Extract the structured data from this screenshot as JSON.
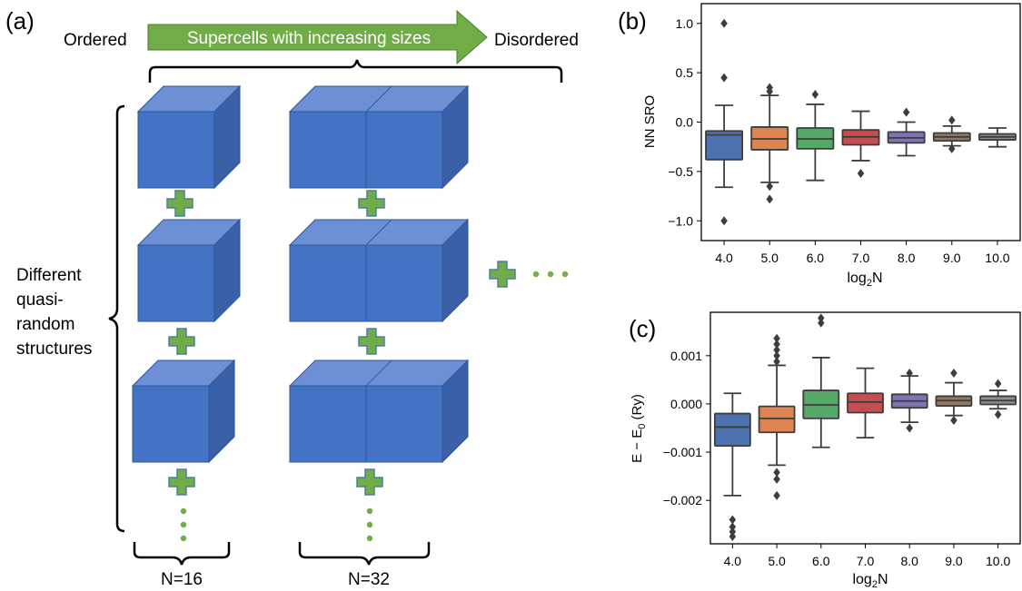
{
  "panel_a": {
    "label": "(a)",
    "ordered": "Ordered",
    "arrow_text": "Supercells with increasing sizes",
    "disordered": "Disordered",
    "side_text": [
      "Different",
      "quasi-",
      "random",
      "structures"
    ],
    "n_labels": [
      "N=16",
      "N=32"
    ],
    "colors": {
      "cube_front": "#4472C4",
      "cube_top": "#6D8FD6",
      "cube_side": "#3A61A8",
      "plus": "#70AD47",
      "arrow": "#70AD47"
    }
  },
  "chart_data": [
    {
      "panel": "(b)",
      "type": "box",
      "categories": [
        "4.0",
        "5.0",
        "6.0",
        "7.0",
        "8.0",
        "9.0",
        "10.0"
      ],
      "xlabel": "log2N",
      "ylabel": "NN SRO",
      "ylim": [
        -1.2,
        1.2
      ],
      "yticks": [
        1.0,
        0.5,
        0.0,
        -0.5,
        -1.0
      ],
      "ytick_labels": [
        "1.0",
        "0.5",
        "0.0",
        "−0.5",
        "−1.0"
      ],
      "colors": [
        "#4C72B0",
        "#DD8452",
        "#55A868",
        "#C44E52",
        "#8172B2",
        "#937860",
        "#8C8C8C"
      ],
      "boxes": [
        {
          "q1": -0.38,
          "median": -0.13,
          "q3": -0.09,
          "whisker_low": -0.66,
          "whisker_high": 0.17,
          "outliers": [
            1.0,
            0.45,
            -1.0
          ]
        },
        {
          "q1": -0.28,
          "median": -0.17,
          "q3": -0.05,
          "whisker_low": -0.61,
          "whisker_high": 0.27,
          "outliers": [
            0.35,
            0.31,
            -0.65,
            -0.78
          ]
        },
        {
          "q1": -0.27,
          "median": -0.17,
          "q3": -0.06,
          "whisker_low": -0.59,
          "whisker_high": 0.18,
          "outliers": [
            0.28
          ]
        },
        {
          "q1": -0.23,
          "median": -0.15,
          "q3": -0.08,
          "whisker_low": -0.39,
          "whisker_high": 0.11,
          "outliers": [
            -0.52
          ]
        },
        {
          "q1": -0.21,
          "median": -0.16,
          "q3": -0.1,
          "whisker_low": -0.34,
          "whisker_high": 0.0,
          "outliers": [
            0.1
          ]
        },
        {
          "q1": -0.19,
          "median": -0.15,
          "q3": -0.11,
          "whisker_low": -0.24,
          "whisker_high": -0.04,
          "outliers": [
            0.02,
            -0.27
          ]
        },
        {
          "q1": -0.18,
          "median": -0.15,
          "q3": -0.12,
          "whisker_low": -0.25,
          "whisker_high": -0.06,
          "outliers": []
        }
      ]
    },
    {
      "panel": "(c)",
      "type": "box",
      "categories": [
        "4.0",
        "5.0",
        "6.0",
        "7.0",
        "8.0",
        "9.0",
        "10.0"
      ],
      "xlabel": "log2N",
      "ylabel": "E − E0 (Ry)",
      "ylim": [
        -0.0029,
        0.0019
      ],
      "yticks": [
        0.001,
        0.0,
        -0.001,
        -0.002
      ],
      "ytick_labels": [
        "0.001",
        "0.000",
        "−0.001",
        "−0.002"
      ],
      "colors": [
        "#4C72B0",
        "#DD8452",
        "#55A868",
        "#C44E52",
        "#8172B2",
        "#937860",
        "#8C8C8C"
      ],
      "boxes": [
        {
          "q1": -0.00087,
          "median": -0.00048,
          "q3": -0.0002,
          "whisker_low": -0.0019,
          "whisker_high": 0.00022,
          "outliers": [
            -0.0024,
            -0.00255,
            -0.00265,
            -0.00275
          ]
        },
        {
          "q1": -0.00059,
          "median": -0.0003,
          "q3": -5e-05,
          "whisker_low": -0.00127,
          "whisker_high": 0.0008,
          "outliers": [
            0.00136,
            0.00124,
            0.00112,
            0.001,
            0.00088,
            -0.00142,
            -0.00156,
            -0.0019
          ]
        },
        {
          "q1": -0.0003,
          "median": -2e-05,
          "q3": 0.00028,
          "whisker_low": -0.0009,
          "whisker_high": 0.00096,
          "outliers": [
            0.00178,
            0.00168
          ]
        },
        {
          "q1": -0.00018,
          "median": 4e-05,
          "q3": 0.00022,
          "whisker_low": -0.0007,
          "whisker_high": 0.00074,
          "outliers": []
        },
        {
          "q1": -8e-05,
          "median": 6e-05,
          "q3": 0.0002,
          "whisker_low": -0.00038,
          "whisker_high": 0.00058,
          "outliers": [
            0.00064,
            -0.0005
          ]
        },
        {
          "q1": -4e-05,
          "median": 7e-05,
          "q3": 0.00016,
          "whisker_low": -0.00024,
          "whisker_high": 0.00044,
          "outliers": [
            0.00064,
            -0.00034
          ]
        },
        {
          "q1": -1e-05,
          "median": 7e-05,
          "q3": 0.00016,
          "whisker_low": -0.0001,
          "whisker_high": 0.00028,
          "outliers": [
            0.00042,
            -0.00022
          ]
        }
      ]
    }
  ]
}
